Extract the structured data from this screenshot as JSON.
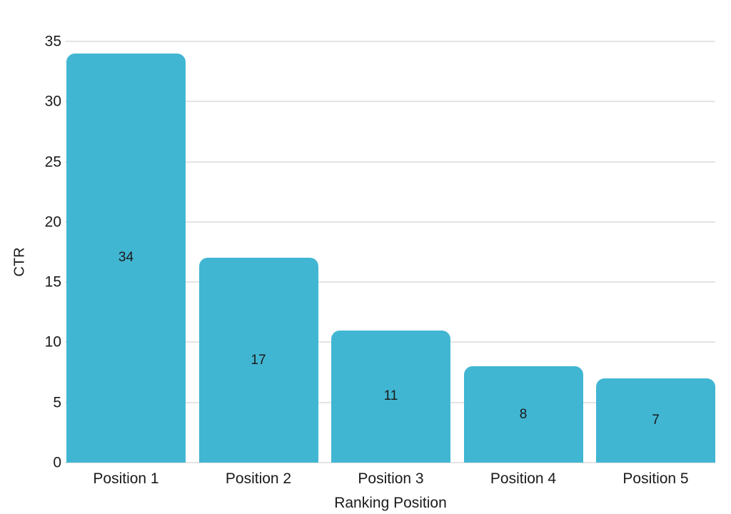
{
  "chart_data": {
    "type": "bar",
    "title": "",
    "categories": [
      "Position 1",
      "Position 2",
      "Position 3",
      "Position 4",
      "Position 5"
    ],
    "values": [
      34,
      17,
      11,
      8,
      7
    ],
    "value_labels_shown": true,
    "value_label_position": "center-of-bar",
    "xlabel": "Ranking Position",
    "ylabel": "CTR",
    "ylim": [
      0,
      35
    ],
    "yticks": [
      0,
      5,
      10,
      15,
      20,
      25,
      30,
      35
    ],
    "grid": "horizontal",
    "legend": "none",
    "bar_color": "#41B6D2",
    "grid_color": "#E4E4E4",
    "text_color": "#1A1A1A",
    "background_color": "#FFFFFF"
  }
}
